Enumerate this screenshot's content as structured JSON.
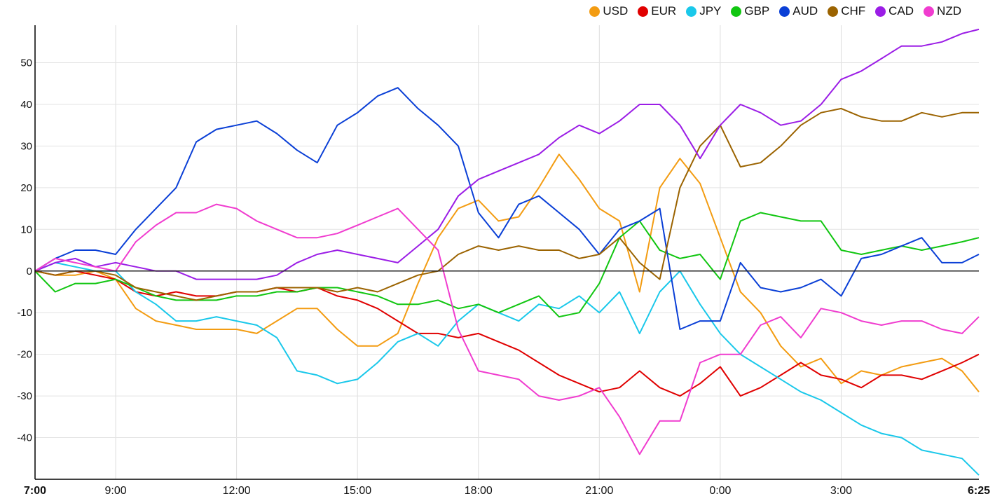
{
  "chart_data": {
    "type": "line",
    "title": "",
    "xlabel": "",
    "ylabel": "",
    "x_tick_labels": [
      "7:00",
      "9:00",
      "12:00",
      "15:00",
      "18:00",
      "21:00",
      "0:00",
      "3:00",
      "6:25"
    ],
    "x_tick_hours": [
      0,
      2,
      5,
      8,
      11,
      14,
      17,
      20,
      23.4167
    ],
    "x_range_hours": [
      0,
      23.4167
    ],
    "y_ticks": [
      -40,
      -30,
      -20,
      -10,
      0,
      10,
      20,
      30,
      40,
      50
    ],
    "ylim": [
      -50,
      59
    ],
    "grid": true,
    "legend_position": "top-right",
    "hour_offset_start": "7:00",
    "series": [
      {
        "name": "USD",
        "color": "#f39c12",
        "hours": [
          0,
          0.5,
          1,
          1.5,
          2,
          2.5,
          3,
          3.5,
          4,
          4.5,
          5,
          5.5,
          6,
          6.5,
          7,
          7.5,
          8,
          8.5,
          9,
          9.5,
          10,
          10.5,
          11,
          11.5,
          12,
          12.5,
          13,
          13.5,
          14,
          14.5,
          15,
          15.5,
          16,
          16.5,
          17,
          17.5,
          18,
          18.5,
          19,
          19.5,
          20,
          20.5,
          21,
          21.5,
          22,
          22.5,
          23,
          23.4167
        ],
        "values": [
          0,
          -1,
          -1,
          0,
          -2,
          -9,
          -12,
          -13,
          -14,
          -14,
          -14,
          -15,
          -12,
          -9,
          -9,
          -14,
          -18,
          -18,
          -15,
          -3,
          8,
          15,
          17,
          12,
          13,
          20,
          28,
          22,
          15,
          12,
          -5,
          20,
          27,
          21,
          8,
          -5,
          -10,
          -18,
          -23,
          -21,
          -27,
          -24,
          -25,
          -23,
          -22,
          -21,
          -24,
          -29
        ]
      },
      {
        "name": "EUR",
        "color": "#e00000",
        "hours": [
          0,
          0.5,
          1,
          1.5,
          2,
          2.5,
          3,
          3.5,
          4,
          4.5,
          5,
          5.5,
          6,
          6.5,
          7,
          7.5,
          8,
          8.5,
          9,
          9.5,
          10,
          10.5,
          11,
          11.5,
          12,
          12.5,
          13,
          13.5,
          14,
          14.5,
          15,
          15.5,
          16,
          16.5,
          17,
          17.5,
          18,
          18.5,
          19,
          19.5,
          20,
          20.5,
          21,
          21.5,
          22,
          22.5,
          23,
          23.4167
        ],
        "values": [
          0,
          -1,
          0,
          -1,
          -2,
          -5,
          -6,
          -5,
          -6,
          -6,
          -5,
          -5,
          -4,
          -5,
          -4,
          -6,
          -7,
          -9,
          -12,
          -15,
          -15,
          -16,
          -15,
          -17,
          -19,
          -22,
          -25,
          -27,
          -29,
          -28,
          -24,
          -28,
          -30,
          -27,
          -23,
          -30,
          -28,
          -25,
          -22,
          -25,
          -26,
          -28,
          -25,
          -25,
          -26,
          -24,
          -22,
          -20
        ]
      },
      {
        "name": "JPY",
        "color": "#1ac8ea",
        "hours": [
          0,
          0.5,
          1,
          1.5,
          2,
          2.5,
          3,
          3.5,
          4,
          4.5,
          5,
          5.5,
          6,
          6.5,
          7,
          7.5,
          8,
          8.5,
          9,
          9.5,
          10,
          10.5,
          11,
          11.5,
          12,
          12.5,
          13,
          13.5,
          14,
          14.5,
          15,
          15.5,
          16,
          16.5,
          17,
          17.5,
          18,
          18.5,
          19,
          19.5,
          20,
          20.5,
          21,
          21.5,
          22,
          22.5,
          23,
          23.4167
        ],
        "values": [
          0,
          2,
          1,
          0,
          0,
          -5,
          -8,
          -12,
          -12,
          -11,
          -12,
          -13,
          -16,
          -24,
          -25,
          -27,
          -26,
          -22,
          -17,
          -15,
          -18,
          -12,
          -8,
          -10,
          -12,
          -8,
          -9,
          -6,
          -10,
          -5,
          -15,
          -5,
          0,
          -8,
          -15,
          -20,
          -23,
          -26,
          -29,
          -31,
          -34,
          -37,
          -39,
          -40,
          -43,
          -44,
          -45,
          -49
        ]
      },
      {
        "name": "GBP",
        "color": "#11c611",
        "hours": [
          0,
          0.5,
          1,
          1.5,
          2,
          2.5,
          3,
          3.5,
          4,
          4.5,
          5,
          5.5,
          6,
          6.5,
          7,
          7.5,
          8,
          8.5,
          9,
          9.5,
          10,
          10.5,
          11,
          11.5,
          12,
          12.5,
          13,
          13.5,
          14,
          14.5,
          15,
          15.5,
          16,
          16.5,
          17,
          17.5,
          18,
          18.5,
          19,
          19.5,
          20,
          20.5,
          21,
          21.5,
          22,
          22.5,
          23,
          23.4167
        ],
        "values": [
          0,
          -5,
          -3,
          -3,
          -2,
          -4,
          -6,
          -7,
          -7,
          -7,
          -6,
          -6,
          -5,
          -5,
          -4,
          -4,
          -5,
          -6,
          -8,
          -8,
          -7,
          -9,
          -8,
          -10,
          -8,
          -6,
          -11,
          -10,
          -3,
          8,
          12,
          5,
          3,
          4,
          -2,
          12,
          14,
          13,
          12,
          12,
          5,
          4,
          5,
          6,
          5,
          6,
          7,
          8
        ]
      },
      {
        "name": "AUD",
        "color": "#0a3fd6",
        "hours": [
          0,
          0.5,
          1,
          1.5,
          2,
          2.5,
          3,
          3.5,
          4,
          4.5,
          5,
          5.5,
          6,
          6.5,
          7,
          7.5,
          8,
          8.5,
          9,
          9.5,
          10,
          10.5,
          11,
          11.5,
          12,
          12.5,
          13,
          13.5,
          14,
          14.5,
          15,
          15.5,
          16,
          16.5,
          17,
          17.5,
          18,
          18.5,
          19,
          19.5,
          20,
          20.5,
          21,
          21.5,
          22,
          22.5,
          23,
          23.4167
        ],
        "values": [
          0,
          3,
          5,
          5,
          4,
          10,
          15,
          20,
          31,
          34,
          35,
          36,
          33,
          29,
          26,
          35,
          38,
          42,
          44,
          39,
          35,
          30,
          14,
          8,
          16,
          18,
          14,
          10,
          4,
          10,
          12,
          15,
          -14,
          -12,
          -12,
          2,
          -4,
          -5,
          -4,
          -2,
          -6,
          3,
          4,
          6,
          8,
          2,
          2,
          4
        ]
      },
      {
        "name": "CHF",
        "color": "#9b6300",
        "hours": [
          0,
          0.5,
          1,
          1.5,
          2,
          2.5,
          3,
          3.5,
          4,
          4.5,
          5,
          5.5,
          6,
          6.5,
          7,
          7.5,
          8,
          8.5,
          9,
          9.5,
          10,
          10.5,
          11,
          11.5,
          12,
          12.5,
          13,
          13.5,
          14,
          14.5,
          15,
          15.5,
          16,
          16.5,
          17,
          17.5,
          18,
          18.5,
          19,
          19.5,
          20,
          20.5,
          21,
          21.5,
          22,
          22.5,
          23,
          23.4167
        ],
        "values": [
          0,
          -1,
          0,
          0,
          -1,
          -4,
          -5,
          -6,
          -7,
          -6,
          -5,
          -5,
          -4,
          -4,
          -4,
          -5,
          -4,
          -5,
          -3,
          -1,
          0,
          4,
          6,
          5,
          6,
          5,
          5,
          3,
          4,
          8,
          2,
          -2,
          20,
          30,
          35,
          25,
          26,
          30,
          35,
          38,
          39,
          37,
          36,
          36,
          38,
          37,
          38,
          38
        ]
      },
      {
        "name": "CAD",
        "color": "#9b1de6",
        "hours": [
          0,
          0.5,
          1,
          1.5,
          2,
          2.5,
          3,
          3.5,
          4,
          4.5,
          5,
          5.5,
          6,
          6.5,
          7,
          7.5,
          8,
          8.5,
          9,
          9.5,
          10,
          10.5,
          11,
          11.5,
          12,
          12.5,
          13,
          13.5,
          14,
          14.5,
          15,
          15.5,
          16,
          16.5,
          17,
          17.5,
          18,
          18.5,
          19,
          19.5,
          20,
          20.5,
          21,
          21.5,
          22,
          22.5,
          23,
          23.4167
        ],
        "values": [
          0,
          2,
          3,
          1,
          2,
          1,
          0,
          0,
          -2,
          -2,
          -2,
          -2,
          -1,
          2,
          4,
          5,
          4,
          3,
          2,
          6,
          10,
          18,
          22,
          24,
          26,
          28,
          32,
          35,
          33,
          36,
          40,
          40,
          35,
          27,
          35,
          40,
          38,
          35,
          36,
          40,
          46,
          48,
          51,
          54,
          54,
          55,
          57,
          58
        ]
      },
      {
        "name": "NZD",
        "color": "#f03ccf",
        "hours": [
          0,
          0.5,
          1,
          1.5,
          2,
          2.5,
          3,
          3.5,
          4,
          4.5,
          5,
          5.5,
          6,
          6.5,
          7,
          7.5,
          8,
          8.5,
          9,
          9.5,
          10,
          10.5,
          11,
          11.5,
          12,
          12.5,
          13,
          13.5,
          14,
          14.5,
          15,
          15.5,
          16,
          16.5,
          17,
          17.5,
          18,
          18.5,
          19,
          19.5,
          20,
          20.5,
          21,
          21.5,
          22,
          22.5,
          23,
          23.4167
        ],
        "values": [
          0,
          3,
          2,
          1,
          0,
          7,
          11,
          14,
          14,
          16,
          15,
          12,
          10,
          8,
          8,
          9,
          11,
          13,
          15,
          10,
          5,
          -14,
          -24,
          -25,
          -26,
          -30,
          -31,
          -30,
          -28,
          -35,
          -44,
          -36,
          -36,
          -22,
          -20,
          -20,
          -13,
          -11,
          -16,
          -9,
          -10,
          -12,
          -13,
          -12,
          -12,
          -14,
          -15,
          -11
        ]
      }
    ]
  }
}
